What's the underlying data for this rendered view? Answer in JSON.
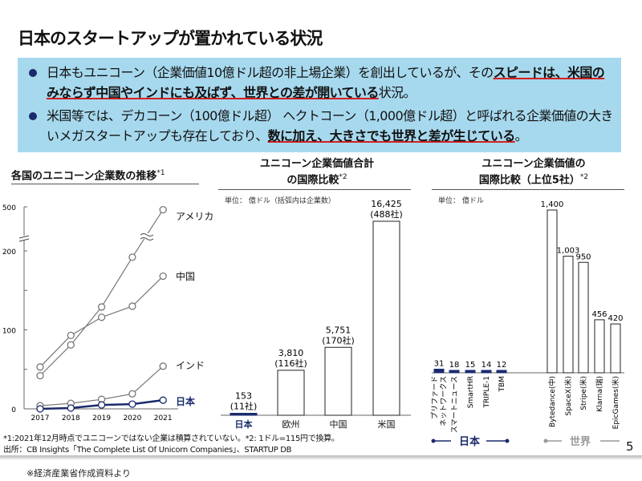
{
  "title": "日本のスタートアップが置かれている状況",
  "bullets": [
    {
      "pre": "日本もユニコーン（企業価値10億ドル超の非上場企業）を創出しているが、その",
      "em": "スピードは、米国のみならず中国やインドにも及ばず、世界との差が開いている",
      "post": "状況。"
    },
    {
      "pre": "米国等では、デカコーン（100億ドル超） ヘクトコーン（1,000億ドル超）と呼ばれる企業価値の大きいメガスタートアップも存在しており、",
      "em": "数に加え、大きさでも世界と差が生じている",
      "post": "。"
    }
  ],
  "colors": {
    "box": "#a7d9ee",
    "japan": "#1a2a6c",
    "other": "#888888",
    "underline": "#d42020"
  },
  "chart_data": [
    {
      "type": "line",
      "title": "各国のユニコーン企業数の推移",
      "title_note": "*1",
      "x": [
        2017,
        2018,
        2019,
        2020,
        2021
      ],
      "yticks": [
        0,
        100,
        200,
        500
      ],
      "ylim": [
        0,
        500
      ],
      "axis_break": [
        200,
        500
      ],
      "series": [
        {
          "name": "アメリカ",
          "values": [
            42,
            81,
            129,
            192,
            488
          ]
        },
        {
          "name": "中国",
          "values": [
            53,
            93,
            116,
            130,
            168
          ]
        },
        {
          "name": "インド",
          "values": [
            4,
            7,
            12,
            19,
            54
          ]
        },
        {
          "name": "日本",
          "values": [
            0,
            1,
            5,
            6,
            11
          ]
        }
      ]
    },
    {
      "type": "bar",
      "title_l1": "ユニコーン企業価値合計",
      "title_l2": "の国際比較",
      "title_note": "*2",
      "unit": "単位： 億ドル（括弧内は企業数）",
      "categories": [
        "日本",
        "欧州",
        "中国",
        "米国"
      ],
      "values": [
        153,
        3810,
        5751,
        16425
      ],
      "value_labels": [
        "153",
        "3,810",
        "5,751",
        "16,425"
      ],
      "count_labels": [
        "(11社)",
        "(116社)",
        "(170社)",
        "(488社)"
      ]
    },
    {
      "type": "bar",
      "title_l1": "ユニコーン企業価値の",
      "title_l2": "国際比較（上位5社）",
      "title_note": "*2",
      "unit": "単位： 億ドル",
      "groups": [
        {
          "name": "日本",
          "categories": [
            "プリファードネットワークス",
            "スマートニュース",
            "SmartHR",
            "TRIPLE-1",
            "TBM"
          ],
          "values": [
            31,
            18,
            15,
            14,
            12
          ]
        },
        {
          "name": "世界",
          "categories": [
            "Bytedance(中)",
            "SpaceX(米)",
            "Stripe(米)",
            "Klarna(瑞)",
            "EpicGames(米)"
          ],
          "values": [
            1400,
            1003,
            950,
            456,
            420
          ]
        }
      ],
      "value_labels": [
        "31",
        "18",
        "15",
        "14",
        "12",
        "1,400",
        "1,003",
        "950",
        "456",
        "420"
      ],
      "cat_display": [
        "プリファード\nネットワークス",
        "スマートニュース",
        "SmartHR",
        "TRIPLE-1",
        "TBM",
        "Bytedance(中)",
        "SpaceX(米)",
        "Stripe(米)",
        "Klarna(瑞)",
        "EpicGames(米)"
      ]
    }
  ],
  "footnotes": {
    "note1": "*1:2021年12月時点でユニコーンではない企業は積算されていない。*2: 1ドル=115円で換算。",
    "source": "出所：CB Insights「The Complete List Of Unicorn Companies」、STARTUP DB",
    "page": "5",
    "credit": "※経済産業省作成資料より"
  }
}
